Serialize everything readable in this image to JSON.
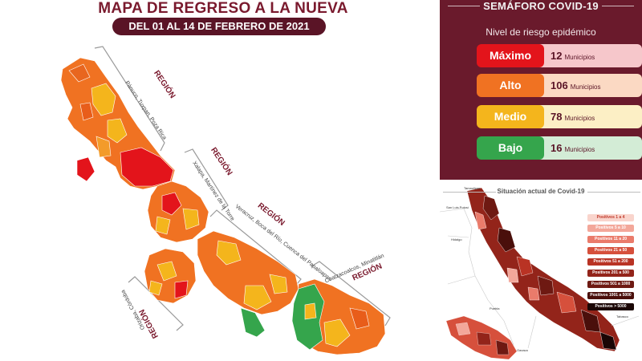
{
  "map": {
    "title": "MAPA DE REGRESO A LA NUEVA NORMALIDAD",
    "date_range": "DEL 01 AL 14 DE FEBRERO DE 2021",
    "regions": [
      {
        "label": "REGIÓN",
        "sub": "Pánuco, Tuxpan, Poza Rica"
      },
      {
        "label": "REGIÓN",
        "sub": "Xalapa, Martínez de la Torre"
      },
      {
        "label": "REGIÓN",
        "sub": "Veracruz, Boca del Río, Cuenca del Papaloapan"
      },
      {
        "label": "REGIÓN",
        "sub": "Coatzacoalcos, Minatitlán"
      },
      {
        "label": "REGIÓN",
        "sub": "Orizaba, Córdoba"
      }
    ]
  },
  "semaforo": {
    "title": "SEMÁFORO COVID-19",
    "subtitle": "Nivel de riesgo epidémico",
    "levels": [
      {
        "level": "Máximo",
        "count": "12",
        "unit": "Municipios",
        "color": "#e3141b",
        "light": "#f6c7cb",
        "text": "#5a1426"
      },
      {
        "level": "Alto",
        "count": "106",
        "unit": "Municipios",
        "color": "#f07222",
        "light": "#fbd9c3",
        "text": "#5a1426"
      },
      {
        "level": "Medio",
        "count": "78",
        "unit": "Municipios",
        "color": "#f4b51c",
        "light": "#fcefc5",
        "text": "#5a1426"
      },
      {
        "level": "Bajo",
        "count": "16",
        "unit": "Municipios",
        "color": "#35a54c",
        "light": "#d3ecd6",
        "text": "#5a1426"
      }
    ]
  },
  "situacion": {
    "title": "Situación actual de Covid-19",
    "legend": [
      {
        "label": "Positivos 1 a 4",
        "color": "#f9d4cc",
        "text": "#c0392b"
      },
      {
        "label": "Positivos 5 a 10",
        "color": "#f3a79a",
        "text": "#ffffff"
      },
      {
        "label": "Positivos 11 a 20",
        "color": "#ea7b6b",
        "text": "#ffffff"
      },
      {
        "label": "Positivos 21 a 50",
        "color": "#d6503c",
        "text": "#ffffff"
      },
      {
        "label": "Positivos 51 a 200",
        "color": "#b93324",
        "text": "#ffffff"
      },
      {
        "label": "Positivos 201 a 500",
        "color": "#93241a",
        "text": "#ffffff"
      },
      {
        "label": "Positivos 501 a 1000",
        "color": "#6e1912",
        "text": "#ffffff"
      },
      {
        "label": "Positivos 1001 a 5000",
        "color": "#4a0f0b",
        "text": "#ffffff"
      },
      {
        "label": "Positivos > 5000",
        "color": "#1a0605",
        "text": "#ffffff"
      }
    ],
    "places": [
      "Tamaulipas",
      "San Luis Potosí",
      "Hidalgo",
      "Puebla",
      "Oaxaca",
      "Tabasco"
    ]
  }
}
